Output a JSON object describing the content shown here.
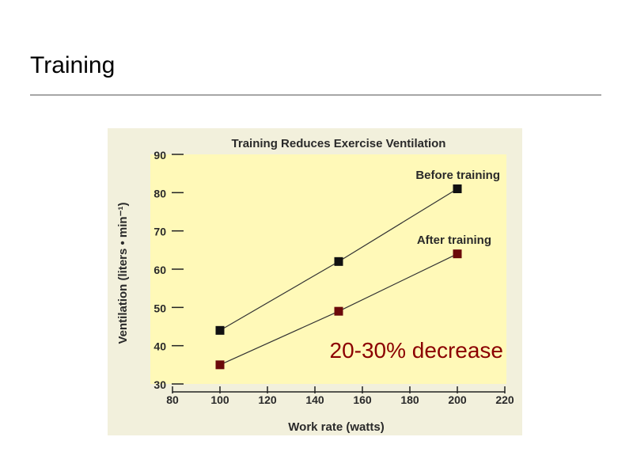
{
  "slide": {
    "title": "Training"
  },
  "colors": {
    "plot_background": "#fff9b8",
    "figure_background": "#f2f0dc",
    "before_marker": "#111111",
    "after_marker": "#6b0a0a",
    "line": "#333333",
    "annotation": "#8b0000"
  },
  "chart_data": {
    "type": "line",
    "title": "Training Reduces Exercise Ventilation",
    "xlabel": "Work rate (watts)",
    "ylabel": "Ventilation (liters • min⁻¹)",
    "xlim": [
      80,
      220
    ],
    "ylim": [
      30,
      90
    ],
    "xticks": [
      80,
      100,
      120,
      140,
      160,
      180,
      200,
      220
    ],
    "yticks": [
      30,
      40,
      50,
      60,
      70,
      80,
      90
    ],
    "grid": false,
    "series": [
      {
        "name": "Before training",
        "x": [
          100,
          150,
          200
        ],
        "y": [
          44,
          62,
          81
        ]
      },
      {
        "name": "After training",
        "x": [
          100,
          150,
          200
        ],
        "y": [
          35,
          49,
          64
        ]
      }
    ],
    "annotation": "20-30% decrease"
  }
}
